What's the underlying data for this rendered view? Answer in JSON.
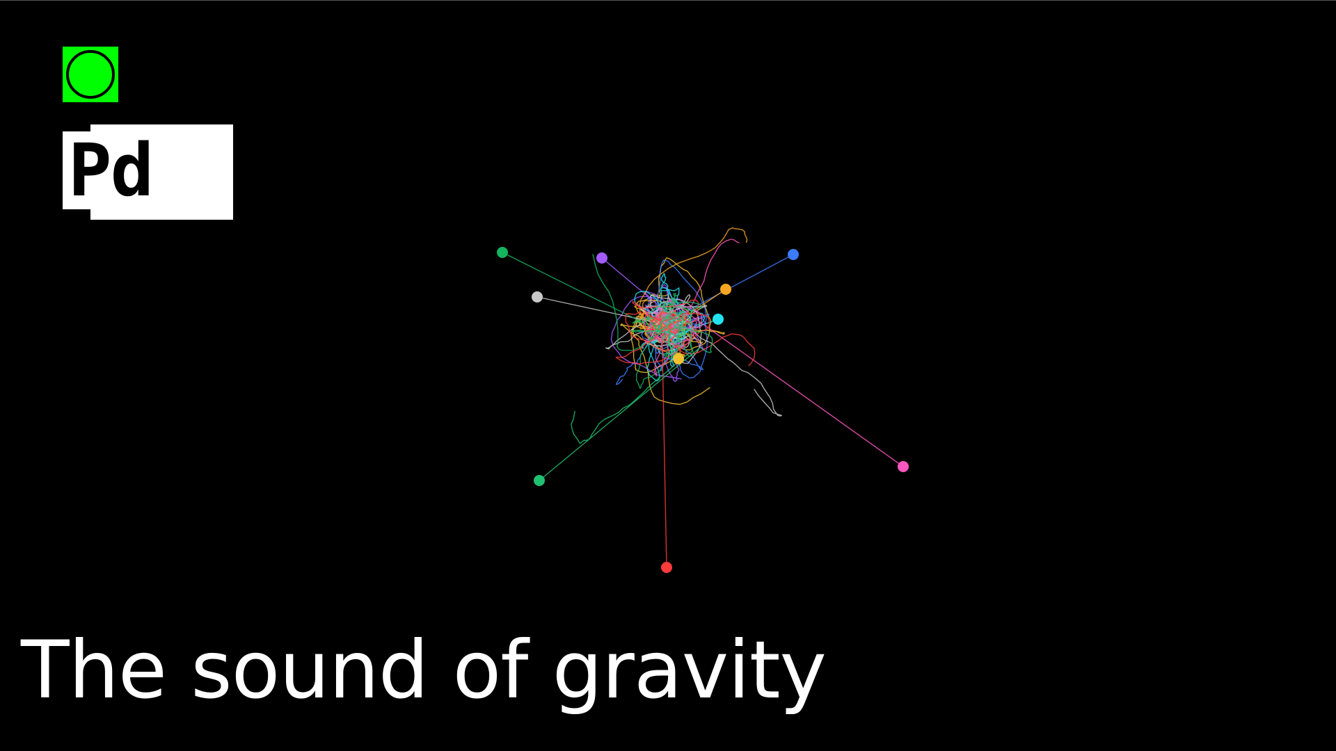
{
  "title": "The sound of gravity",
  "logo_text": "Pd",
  "colors": {
    "background": "#000000",
    "bang_fill": "#00ff00",
    "bodies": [
      "#f2c22e",
      "#3b7cff",
      "#a25cff",
      "#f6a623",
      "#22e3f0",
      "#c8c8c8",
      "#15b45f",
      "#ff55c0",
      "#ff3b3b",
      "#20c070"
    ]
  },
  "icons": {
    "bang": "bang-icon",
    "logo": "pd-logo-icon"
  }
}
